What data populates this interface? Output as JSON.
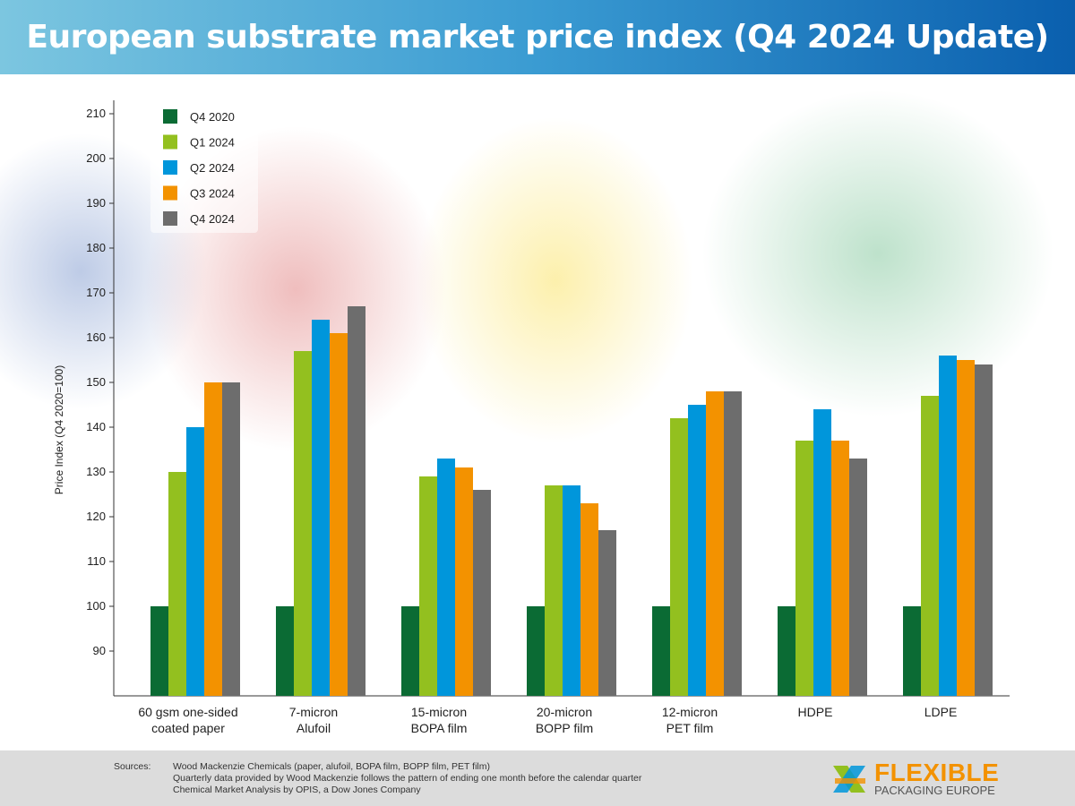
{
  "header": {
    "title": "European substrate market price index (Q4 2024 Update)"
  },
  "chart_data": {
    "type": "bar",
    "title": "European substrate market price index (Q4 2024 Update)",
    "ylabel": "Price Index (Q4 2020=100)",
    "xlabel": "",
    "ylim": [
      80,
      213
    ],
    "yticks": [
      90,
      100,
      110,
      120,
      130,
      140,
      150,
      160,
      170,
      180,
      190,
      200,
      210
    ],
    "grid": false,
    "legend_position": "top-left",
    "categories": [
      [
        "60 gsm one-sided",
        "coated paper"
      ],
      [
        "7-micron",
        "Alufoil"
      ],
      [
        "15-micron",
        "BOPA film"
      ],
      [
        "20-micron",
        "BOPP film"
      ],
      [
        "12-micron",
        "PET film"
      ],
      [
        "HDPE"
      ],
      [
        "LDPE"
      ]
    ],
    "series": [
      {
        "name": "Q4 2020",
        "color": "#0b6b34",
        "values": [
          100,
          100,
          100,
          100,
          100,
          100,
          100
        ]
      },
      {
        "name": "Q1 2024",
        "color": "#93c01f",
        "values": [
          130,
          157,
          129,
          127,
          142,
          137,
          147
        ]
      },
      {
        "name": "Q2 2024",
        "color": "#0096db",
        "values": [
          140,
          164,
          133,
          127,
          145,
          144,
          156
        ]
      },
      {
        "name": "Q3 2024",
        "color": "#f39200",
        "values": [
          150,
          161,
          131,
          123,
          148,
          137,
          155
        ]
      },
      {
        "name": "Q4 2024",
        "color": "#6d6d6d",
        "values": [
          150,
          167,
          126,
          117,
          148,
          133,
          154
        ]
      }
    ]
  },
  "footer": {
    "sources_label": "Sources:",
    "lines": [
      "Wood Mackenzie Chemicals (paper, alufoil, BOPA film, BOPP film, PET film)",
      "Quarterly data provided by Wood Mackenzie follows the pattern of ending one month before the calendar quarter",
      "Chemical Market Analysis by OPIS, a Dow Jones Company"
    ],
    "logo": {
      "line1": "FLEXIBLE",
      "line2": "PACKAGING EUROPE"
    }
  }
}
